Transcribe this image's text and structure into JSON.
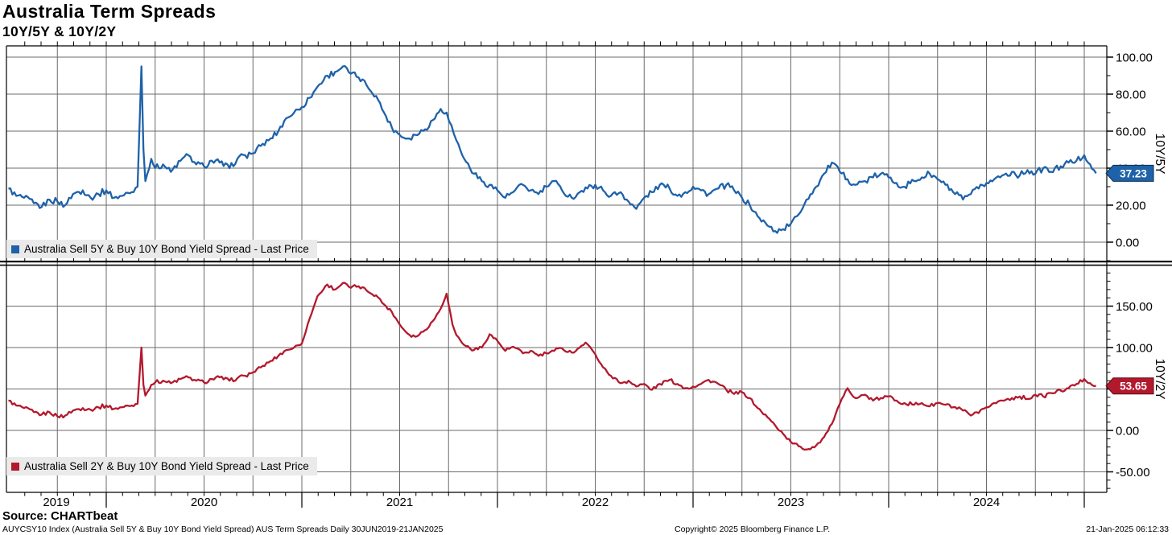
{
  "header": {
    "title": "Australia Term Spreads",
    "subtitle": "10Y/5Y & 10Y/2Y"
  },
  "footer": {
    "source": "Source: CHARTbeat",
    "description": "AUYCSY10 Index (Australia Sell 5Y & Buy 10Y Bond Yield Spread) AUS Term Spreads  Daily 30JUN2019-21JAN2025",
    "copyright": "Copyright© 2025 Bloomberg Finance L.P.",
    "timestamp": "21-Jan-2025 06:12:33"
  },
  "colors": {
    "blue": "#1e62a9",
    "blue_dark": "#0d2f52",
    "red": "#b3192d",
    "red_dark": "#5c0a16",
    "grid": "#6b6b6b",
    "axis": "#000000",
    "legend_bg": "#eaeaea"
  },
  "x_axis": {
    "start_year_frac": 2019.5,
    "end_year_frac": 2025.06,
    "years": [
      2019,
      2020,
      2021,
      2022,
      2023,
      2024
    ],
    "year_labels": [
      "2019",
      "2020",
      "2021",
      "2022",
      "2023",
      "2024"
    ],
    "gridline_interval_years": 0.25,
    "minor_tick_interval_years": 0.08333
  },
  "chart_data": [
    {
      "type": "line",
      "name": "10Y/5Y",
      "legend": "Australia Sell 5Y & Buy 10Y Bond Yield Spread - Last Price",
      "last_price": "37.23",
      "last_price_value": 37.23,
      "color": "#1e62a9",
      "axis_label": "10Y/5Y",
      "ylim": [
        -10.4,
        106.1
      ],
      "y_major_ticks": [
        0,
        20,
        40,
        60,
        80,
        100
      ],
      "y_tick_labels": [
        "0.00",
        "20.00",
        "40.00",
        "60.00",
        "80.00",
        "100.00"
      ],
      "y_minor_step": 10,
      "points": [
        [
          2019.5,
          29
        ],
        [
          2019.54,
          25
        ],
        [
          2019.58,
          24
        ],
        [
          2019.63,
          21
        ],
        [
          2019.67,
          19
        ],
        [
          2019.71,
          23
        ],
        [
          2019.75,
          22
        ],
        [
          2019.79,
          20
        ],
        [
          2019.83,
          26
        ],
        [
          2019.88,
          28
        ],
        [
          2019.92,
          24
        ],
        [
          2019.96,
          26
        ],
        [
          2020.0,
          28
        ],
        [
          2020.04,
          24
        ],
        [
          2020.08,
          25
        ],
        [
          2020.13,
          27
        ],
        [
          2020.16,
          30
        ],
        [
          2020.18,
          95
        ],
        [
          2020.19,
          50
        ],
        [
          2020.2,
          33
        ],
        [
          2020.23,
          45
        ],
        [
          2020.25,
          40
        ],
        [
          2020.29,
          42
        ],
        [
          2020.33,
          38
        ],
        [
          2020.38,
          44
        ],
        [
          2020.42,
          47
        ],
        [
          2020.46,
          42
        ],
        [
          2020.5,
          41
        ],
        [
          2020.54,
          44
        ],
        [
          2020.58,
          43
        ],
        [
          2020.63,
          40
        ],
        [
          2020.67,
          45
        ],
        [
          2020.71,
          47
        ],
        [
          2020.75,
          48
        ],
        [
          2020.79,
          52
        ],
        [
          2020.83,
          55
        ],
        [
          2020.88,
          60
        ],
        [
          2020.92,
          67
        ],
        [
          2020.96,
          70
        ],
        [
          2021.0,
          73
        ],
        [
          2021.04,
          78
        ],
        [
          2021.08,
          84
        ],
        [
          2021.13,
          90
        ],
        [
          2021.17,
          92
        ],
        [
          2021.21,
          95
        ],
        [
          2021.25,
          91
        ],
        [
          2021.29,
          89
        ],
        [
          2021.33,
          85
        ],
        [
          2021.38,
          79
        ],
        [
          2021.42,
          70
        ],
        [
          2021.46,
          62
        ],
        [
          2021.5,
          58
        ],
        [
          2021.54,
          56
        ],
        [
          2021.58,
          58
        ],
        [
          2021.63,
          61
        ],
        [
          2021.67,
          66
        ],
        [
          2021.71,
          72
        ],
        [
          2021.74,
          70
        ],
        [
          2021.79,
          55
        ],
        [
          2021.83,
          45
        ],
        [
          2021.88,
          37
        ],
        [
          2021.92,
          33
        ],
        [
          2021.96,
          31
        ],
        [
          2022.0,
          28
        ],
        [
          2022.04,
          24
        ],
        [
          2022.08,
          27
        ],
        [
          2022.13,
          31
        ],
        [
          2022.17,
          28
        ],
        [
          2022.21,
          26
        ],
        [
          2022.25,
          30
        ],
        [
          2022.29,
          33
        ],
        [
          2022.33,
          28
        ],
        [
          2022.38,
          24
        ],
        [
          2022.42,
          27
        ],
        [
          2022.46,
          29
        ],
        [
          2022.5,
          31
        ],
        [
          2022.54,
          28
        ],
        [
          2022.58,
          25
        ],
        [
          2022.63,
          27
        ],
        [
          2022.67,
          22
        ],
        [
          2022.71,
          18
        ],
        [
          2022.75,
          24
        ],
        [
          2022.79,
          27
        ],
        [
          2022.83,
          31
        ],
        [
          2022.88,
          29
        ],
        [
          2022.92,
          25
        ],
        [
          2022.96,
          27
        ],
        [
          2023.0,
          30
        ],
        [
          2023.04,
          28
        ],
        [
          2023.08,
          26
        ],
        [
          2023.13,
          29
        ],
        [
          2023.17,
          31
        ],
        [
          2023.21,
          28
        ],
        [
          2023.25,
          24
        ],
        [
          2023.29,
          20
        ],
        [
          2023.33,
          14
        ],
        [
          2023.38,
          9
        ],
        [
          2023.42,
          6
        ],
        [
          2023.46,
          7
        ],
        [
          2023.5,
          10
        ],
        [
          2023.54,
          15
        ],
        [
          2023.58,
          23
        ],
        [
          2023.63,
          30
        ],
        [
          2023.67,
          37
        ],
        [
          2023.71,
          43
        ],
        [
          2023.75,
          38
        ],
        [
          2023.79,
          34
        ],
        [
          2023.83,
          31
        ],
        [
          2023.88,
          33
        ],
        [
          2023.92,
          35
        ],
        [
          2023.96,
          37
        ],
        [
          2024.0,
          35
        ],
        [
          2024.04,
          32
        ],
        [
          2024.08,
          30
        ],
        [
          2024.13,
          33
        ],
        [
          2024.17,
          35
        ],
        [
          2024.21,
          37
        ],
        [
          2024.25,
          34
        ],
        [
          2024.29,
          31
        ],
        [
          2024.33,
          27
        ],
        [
          2024.38,
          23
        ],
        [
          2024.42,
          26
        ],
        [
          2024.46,
          29
        ],
        [
          2024.5,
          32
        ],
        [
          2024.54,
          34
        ],
        [
          2024.58,
          36
        ],
        [
          2024.63,
          38
        ],
        [
          2024.67,
          36
        ],
        [
          2024.71,
          39
        ],
        [
          2024.75,
          37
        ],
        [
          2024.79,
          40
        ],
        [
          2024.83,
          38
        ],
        [
          2024.88,
          41
        ],
        [
          2024.92,
          43
        ],
        [
          2024.96,
          44
        ],
        [
          2025.0,
          47
        ],
        [
          2025.03,
          42
        ],
        [
          2025.06,
          37.23
        ]
      ]
    },
    {
      "type": "line",
      "name": "10Y/2Y",
      "legend": "Australia Sell 2Y & Buy 10Y Bond Yield Spread - Last Price",
      "last_price": "53.65",
      "last_price_value": 53.65,
      "color": "#b3192d",
      "axis_label": "10Y/2Y",
      "ylim": [
        -74.8,
        198.1
      ],
      "y_major_ticks": [
        -50,
        0,
        50,
        100,
        150
      ],
      "y_tick_labels": [
        "-50.00",
        "0.00",
        "50.00",
        "100.00",
        "150.00"
      ],
      "y_minor_step": 10,
      "points": [
        [
          2019.5,
          36
        ],
        [
          2019.54,
          30
        ],
        [
          2019.58,
          27
        ],
        [
          2019.63,
          22
        ],
        [
          2019.67,
          19
        ],
        [
          2019.71,
          22
        ],
        [
          2019.75,
          17
        ],
        [
          2019.79,
          18
        ],
        [
          2019.83,
          24
        ],
        [
          2019.88,
          27
        ],
        [
          2019.92,
          25
        ],
        [
          2019.96,
          28
        ],
        [
          2020.0,
          30
        ],
        [
          2020.04,
          26
        ],
        [
          2020.08,
          28
        ],
        [
          2020.13,
          30
        ],
        [
          2020.16,
          32
        ],
        [
          2020.18,
          100
        ],
        [
          2020.19,
          55
        ],
        [
          2020.2,
          42
        ],
        [
          2020.23,
          55
        ],
        [
          2020.25,
          58
        ],
        [
          2020.29,
          60
        ],
        [
          2020.33,
          57
        ],
        [
          2020.38,
          62
        ],
        [
          2020.42,
          64
        ],
        [
          2020.46,
          60
        ],
        [
          2020.5,
          58
        ],
        [
          2020.54,
          62
        ],
        [
          2020.58,
          64
        ],
        [
          2020.63,
          60
        ],
        [
          2020.67,
          63
        ],
        [
          2020.71,
          66
        ],
        [
          2020.75,
          70
        ],
        [
          2020.79,
          76
        ],
        [
          2020.83,
          82
        ],
        [
          2020.88,
          90
        ],
        [
          2020.92,
          97
        ],
        [
          2020.96,
          100
        ],
        [
          2021.0,
          105
        ],
        [
          2021.04,
          135
        ],
        [
          2021.08,
          162
        ],
        [
          2021.13,
          176
        ],
        [
          2021.17,
          170
        ],
        [
          2021.21,
          178
        ],
        [
          2021.25,
          172
        ],
        [
          2021.29,
          174
        ],
        [
          2021.33,
          169
        ],
        [
          2021.38,
          163
        ],
        [
          2021.42,
          152
        ],
        [
          2021.46,
          143
        ],
        [
          2021.5,
          128
        ],
        [
          2021.54,
          117
        ],
        [
          2021.58,
          113
        ],
        [
          2021.63,
          121
        ],
        [
          2021.67,
          132
        ],
        [
          2021.71,
          147
        ],
        [
          2021.74,
          165
        ],
        [
          2021.77,
          128
        ],
        [
          2021.79,
          115
        ],
        [
          2021.83,
          103
        ],
        [
          2021.88,
          97
        ],
        [
          2021.92,
          100
        ],
        [
          2021.96,
          116
        ],
        [
          2022.0,
          108
        ],
        [
          2022.04,
          96
        ],
        [
          2022.08,
          101
        ],
        [
          2022.13,
          93
        ],
        [
          2022.17,
          96
        ],
        [
          2022.21,
          90
        ],
        [
          2022.25,
          93
        ],
        [
          2022.29,
          96
        ],
        [
          2022.33,
          99
        ],
        [
          2022.38,
          94
        ],
        [
          2022.42,
          100
        ],
        [
          2022.45,
          106
        ],
        [
          2022.5,
          92
        ],
        [
          2022.54,
          76
        ],
        [
          2022.58,
          66
        ],
        [
          2022.63,
          57
        ],
        [
          2022.67,
          60
        ],
        [
          2022.71,
          53
        ],
        [
          2022.75,
          56
        ],
        [
          2022.79,
          49
        ],
        [
          2022.83,
          56
        ],
        [
          2022.88,
          61
        ],
        [
          2022.92,
          56
        ],
        [
          2022.96,
          51
        ],
        [
          2023.0,
          53
        ],
        [
          2023.04,
          56
        ],
        [
          2023.08,
          61
        ],
        [
          2023.13,
          56
        ],
        [
          2023.17,
          49
        ],
        [
          2023.21,
          44
        ],
        [
          2023.25,
          46
        ],
        [
          2023.29,
          39
        ],
        [
          2023.33,
          27
        ],
        [
          2023.38,
          16
        ],
        [
          2023.42,
          6
        ],
        [
          2023.46,
          -4
        ],
        [
          2023.5,
          -14
        ],
        [
          2023.54,
          -19
        ],
        [
          2023.58,
          -23
        ],
        [
          2023.63,
          -18
        ],
        [
          2023.67,
          -8
        ],
        [
          2023.71,
          8
        ],
        [
          2023.75,
          32
        ],
        [
          2023.79,
          51
        ],
        [
          2023.83,
          39
        ],
        [
          2023.88,
          43
        ],
        [
          2023.92,
          36
        ],
        [
          2023.96,
          39
        ],
        [
          2024.0,
          41
        ],
        [
          2024.04,
          36
        ],
        [
          2024.08,
          33
        ],
        [
          2024.13,
          31
        ],
        [
          2024.17,
          33
        ],
        [
          2024.21,
          29
        ],
        [
          2024.25,
          33
        ],
        [
          2024.29,
          31
        ],
        [
          2024.33,
          28
        ],
        [
          2024.38,
          24
        ],
        [
          2024.42,
          18
        ],
        [
          2024.46,
          21
        ],
        [
          2024.5,
          28
        ],
        [
          2024.54,
          33
        ],
        [
          2024.58,
          36
        ],
        [
          2024.63,
          39
        ],
        [
          2024.67,
          41
        ],
        [
          2024.71,
          38
        ],
        [
          2024.75,
          43
        ],
        [
          2024.79,
          41
        ],
        [
          2024.83,
          45
        ],
        [
          2024.88,
          48
        ],
        [
          2024.92,
          51
        ],
        [
          2024.96,
          56
        ],
        [
          2025.0,
          62
        ],
        [
          2025.03,
          57
        ],
        [
          2025.06,
          53.65
        ]
      ]
    }
  ]
}
